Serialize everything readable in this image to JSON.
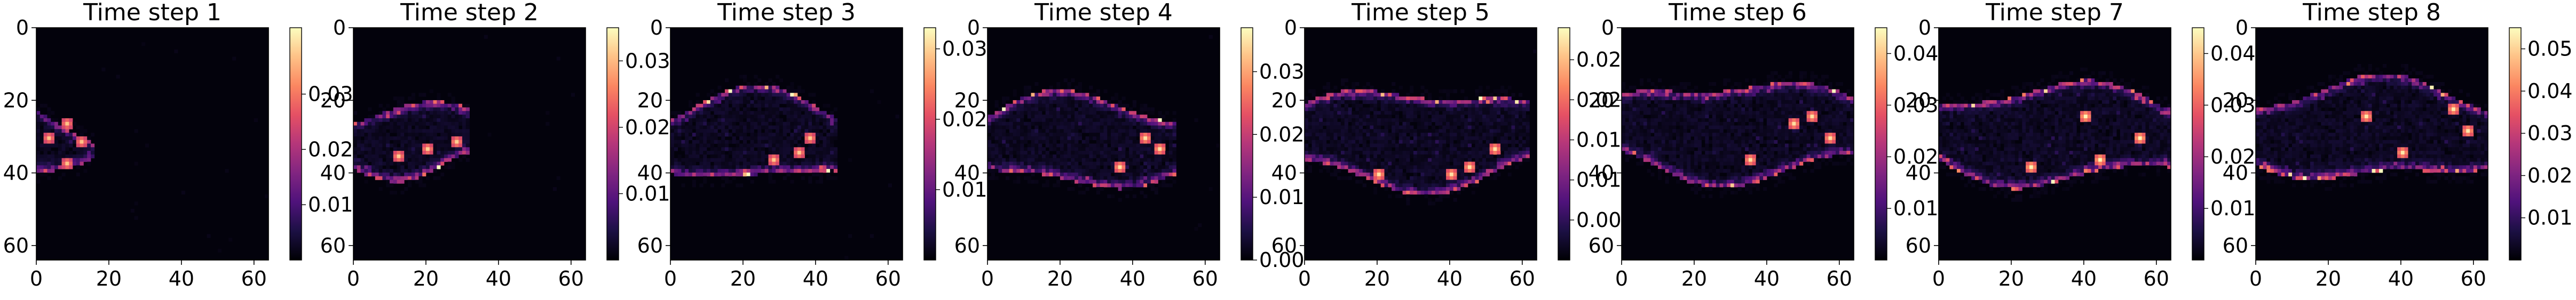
{
  "figure": {
    "colormap": "magma",
    "colormap_stops": [
      "#000004",
      "#1c1044",
      "#4f127b",
      "#812581",
      "#b5367a",
      "#e55064",
      "#fb8761",
      "#fec287",
      "#fcfdbf"
    ],
    "background": "#ffffff"
  },
  "chart_data": [
    {
      "type": "heatmap",
      "title": "Time step 1",
      "xlim": [
        0,
        64
      ],
      "ylim": [
        64,
        0
      ],
      "x_ticks": [
        0,
        20,
        40,
        60
      ],
      "y_ticks": [
        0,
        20,
        40,
        60
      ],
      "colorbar": {
        "min": 0.0,
        "max": 0.042,
        "ticks": [
          "0.01",
          "0.02",
          "0.03"
        ],
        "tick_values": [
          0.01,
          0.02,
          0.03
        ]
      },
      "plume": {
        "tip_x": 14,
        "center_y": 31,
        "height": 13,
        "intensity": 0.035,
        "hot_spots": [
          [
            12,
            31
          ],
          [
            8,
            26
          ],
          [
            8,
            37
          ],
          [
            3,
            30
          ]
        ]
      }
    },
    {
      "type": "heatmap",
      "title": "Time step 2",
      "xlim": [
        0,
        64
      ],
      "ylim": [
        64,
        0
      ],
      "x_ticks": [
        0,
        20,
        40,
        60
      ],
      "y_ticks": [
        0,
        20,
        40,
        60
      ],
      "colorbar": {
        "min": 0.0,
        "max": 0.035,
        "ticks": [
          "0.01",
          "0.02",
          "0.03"
        ],
        "tick_values": [
          0.01,
          0.02,
          0.03
        ]
      },
      "plume": {
        "tip_x": 30,
        "center_y": 30,
        "height": 18,
        "intensity": 0.03,
        "hot_spots": [
          [
            28,
            31
          ],
          [
            20,
            33
          ],
          [
            12,
            35
          ]
        ]
      }
    },
    {
      "type": "heatmap",
      "title": "Time step 3",
      "xlim": [
        0,
        64
      ],
      "ylim": [
        64,
        0
      ],
      "x_ticks": [
        0,
        20,
        40,
        60
      ],
      "y_ticks": [
        0,
        20,
        40,
        60
      ],
      "colorbar": {
        "min": 0.0,
        "max": 0.033,
        "ticks": [
          "0.01",
          "0.02",
          "0.03"
        ],
        "tick_values": [
          0.01,
          0.02,
          0.03
        ]
      },
      "plume": {
        "tip_x": 44,
        "center_y": 30,
        "height": 22,
        "intensity": 0.028,
        "hot_spots": [
          [
            35,
            34
          ],
          [
            28,
            36
          ],
          [
            38,
            30
          ]
        ]
      }
    },
    {
      "type": "heatmap",
      "title": "Time step 4",
      "xlim": [
        0,
        64
      ],
      "ylim": [
        64,
        0
      ],
      "x_ticks": [
        0,
        20,
        40,
        60
      ],
      "y_ticks": [
        0,
        20,
        40,
        60
      ],
      "colorbar": {
        "min": 0.0,
        "max": 0.037,
        "ticks": [
          "0.00",
          "0.01",
          "0.02",
          "0.03"
        ],
        "tick_values": [
          0.0,
          0.01,
          0.02,
          0.03
        ]
      },
      "plume": {
        "tip_x": 50,
        "center_y": 31,
        "height": 22,
        "intensity": 0.033,
        "hot_spots": [
          [
            47,
            33
          ],
          [
            43,
            30
          ],
          [
            36,
            38
          ]
        ]
      }
    },
    {
      "type": "heatmap",
      "title": "Time step 5",
      "xlim": [
        0,
        64
      ],
      "ylim": [
        64,
        0
      ],
      "x_ticks": [
        0,
        20,
        40,
        60
      ],
      "y_ticks": [
        0,
        20,
        40,
        60
      ],
      "colorbar": {
        "min": 0.0,
        "max": 0.029,
        "ticks": [
          "0.005",
          "0.010",
          "0.015",
          "0.020",
          "0.025"
        ],
        "tick_values": [
          0.005,
          0.01,
          0.015,
          0.02,
          0.025
        ]
      },
      "plume": {
        "tip_x": 60,
        "center_y": 30,
        "height": 24,
        "intensity": 0.026,
        "hot_spots": [
          [
            45,
            38
          ],
          [
            40,
            40
          ],
          [
            52,
            33
          ],
          [
            20,
            40
          ]
        ]
      }
    },
    {
      "type": "heatmap",
      "title": "Time step 6",
      "xlim": [
        0,
        64
      ],
      "ylim": [
        64,
        0
      ],
      "x_ticks": [
        0,
        20,
        40,
        60
      ],
      "y_ticks": [
        0,
        20,
        40,
        60
      ],
      "colorbar": {
        "min": 0.0,
        "max": 0.045,
        "ticks": [
          "0.01",
          "0.02",
          "0.03",
          "0.04"
        ],
        "tick_values": [
          0.01,
          0.02,
          0.03,
          0.04
        ]
      },
      "plume": {
        "tip_x": 62,
        "center_y": 28,
        "height": 24,
        "intensity": 0.04,
        "hot_spots": [
          [
            47,
            26
          ],
          [
            57,
            30
          ],
          [
            52,
            24
          ],
          [
            35,
            36
          ]
        ]
      }
    },
    {
      "type": "heatmap",
      "title": "Time step 7",
      "xlim": [
        0,
        64
      ],
      "ylim": [
        64,
        0
      ],
      "x_ticks": [
        0,
        20,
        40,
        60
      ],
      "y_ticks": [
        0,
        20,
        40,
        60
      ],
      "colorbar": {
        "min": 0.0,
        "max": 0.045,
        "ticks": [
          "0.01",
          "0.02",
          "0.03",
          "0.04"
        ],
        "tick_values": [
          0.01,
          0.02,
          0.03,
          0.04
        ]
      },
      "plume": {
        "tip_x": 62,
        "center_y": 29,
        "height": 24,
        "intensity": 0.042,
        "hot_spots": [
          [
            44,
            36
          ],
          [
            40,
            24
          ],
          [
            55,
            30
          ],
          [
            25,
            38
          ]
        ]
      }
    },
    {
      "type": "heatmap",
      "title": "Time step 8",
      "xlim": [
        0,
        64
      ],
      "ylim": [
        64,
        0
      ],
      "x_ticks": [
        0,
        20,
        40,
        60
      ],
      "y_ticks": [
        0,
        20,
        40,
        60
      ],
      "colorbar": {
        "min": 0.0,
        "max": 0.055,
        "ticks": [
          "0.01",
          "0.02",
          "0.03",
          "0.04",
          "0.05"
        ],
        "tick_values": [
          0.01,
          0.02,
          0.03,
          0.04,
          0.05
        ]
      },
      "plume": {
        "tip_x": 63,
        "center_y": 28,
        "height": 24,
        "intensity": 0.05,
        "hot_spots": [
          [
            54,
            22
          ],
          [
            58,
            28
          ],
          [
            40,
            34
          ],
          [
            30,
            24
          ]
        ]
      }
    }
  ]
}
